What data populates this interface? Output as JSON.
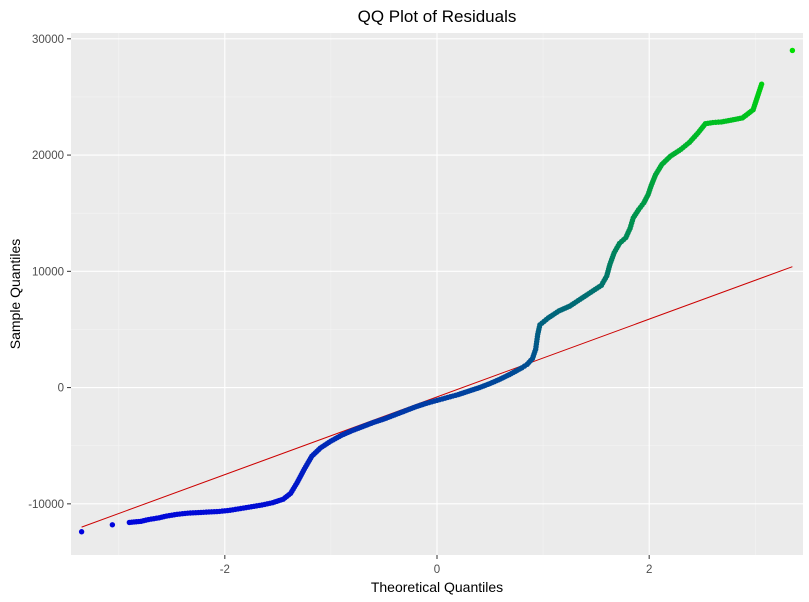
{
  "chart_data": {
    "type": "scatter",
    "title": "QQ Plot of Residuals",
    "xlabel": "Theoretical Quantiles",
    "ylabel": "Sample Quantiles",
    "xlim": [
      -3.45,
      3.45
    ],
    "ylim": [
      -14400,
      30500
    ],
    "x_ticks": [
      -2,
      0,
      2
    ],
    "x_tick_labels": [
      "-2",
      "0",
      "2"
    ],
    "y_ticks": [
      -10000,
      0,
      10000,
      20000,
      30000
    ],
    "y_tick_labels": [
      "-10000",
      "0",
      "10000",
      "20000",
      "30000"
    ],
    "x_minor": [
      -3,
      -1,
      1,
      3
    ],
    "y_minor": [
      -5000,
      5000,
      15000,
      25000
    ],
    "grid": true,
    "legend": "none",
    "reference_line": {
      "x": [
        -3.35,
        3.35
      ],
      "y": [
        -12000,
        10400
      ],
      "color": "#cc0000"
    },
    "color_low": "#0000e0",
    "color_high": "#00e000",
    "residual_range": [
      -12500,
      29000
    ],
    "points": [
      [
        -3.35,
        -12400
      ],
      [
        -3.06,
        -11800
      ],
      [
        -2.9,
        -11600
      ],
      [
        -2.79,
        -11500
      ],
      [
        -2.72,
        -11350
      ],
      [
        -2.62,
        -11200
      ],
      [
        -2.55,
        -11050
      ],
      [
        -2.45,
        -10900
      ],
      [
        -2.35,
        -10800
      ],
      [
        -2.25,
        -10750
      ],
      [
        -2.15,
        -10700
      ],
      [
        -2.05,
        -10650
      ],
      [
        -1.95,
        -10550
      ],
      [
        -1.85,
        -10400
      ],
      [
        -1.75,
        -10250
      ],
      [
        -1.65,
        -10100
      ],
      [
        -1.55,
        -9900
      ],
      [
        -1.45,
        -9600
      ],
      [
        -1.38,
        -9100
      ],
      [
        -1.32,
        -8200
      ],
      [
        -1.25,
        -7000
      ],
      [
        -1.18,
        -5900
      ],
      [
        -1.1,
        -5200
      ],
      [
        -1.0,
        -4600
      ],
      [
        -0.9,
        -4100
      ],
      [
        -0.8,
        -3700
      ],
      [
        -0.7,
        -3350
      ],
      [
        -0.6,
        -3000
      ],
      [
        -0.5,
        -2700
      ],
      [
        -0.4,
        -2350
      ],
      [
        -0.3,
        -2000
      ],
      [
        -0.2,
        -1650
      ],
      [
        -0.1,
        -1350
      ],
      [
        0.0,
        -1100
      ],
      [
        0.1,
        -850
      ],
      [
        0.2,
        -600
      ],
      [
        0.3,
        -300
      ],
      [
        0.4,
        0
      ],
      [
        0.5,
        350
      ],
      [
        0.6,
        750
      ],
      [
        0.7,
        1200
      ],
      [
        0.8,
        1700
      ],
      [
        0.85,
        2000
      ],
      [
        0.9,
        2500
      ],
      [
        0.93,
        3300
      ],
      [
        0.95,
        4600
      ],
      [
        0.97,
        5400
      ],
      [
        1.05,
        6000
      ],
      [
        1.15,
        6600
      ],
      [
        1.25,
        7000
      ],
      [
        1.35,
        7600
      ],
      [
        1.45,
        8200
      ],
      [
        1.55,
        8800
      ],
      [
        1.6,
        9600
      ],
      [
        1.63,
        10600
      ],
      [
        1.67,
        11600
      ],
      [
        1.72,
        12400
      ],
      [
        1.78,
        12900
      ],
      [
        1.82,
        13700
      ],
      [
        1.85,
        14600
      ],
      [
        1.9,
        15300
      ],
      [
        1.95,
        15900
      ],
      [
        1.99,
        16600
      ],
      [
        2.02,
        17400
      ],
      [
        2.06,
        18300
      ],
      [
        2.12,
        19200
      ],
      [
        2.2,
        19900
      ],
      [
        2.3,
        20500
      ],
      [
        2.38,
        21100
      ],
      [
        2.46,
        21900
      ],
      [
        2.53,
        22700
      ],
      [
        2.6,
        22800
      ],
      [
        2.68,
        22850
      ],
      [
        2.77,
        23000
      ],
      [
        2.88,
        23200
      ],
      [
        2.98,
        23900
      ],
      [
        3.06,
        26100
      ],
      [
        3.35,
        29000
      ]
    ]
  }
}
